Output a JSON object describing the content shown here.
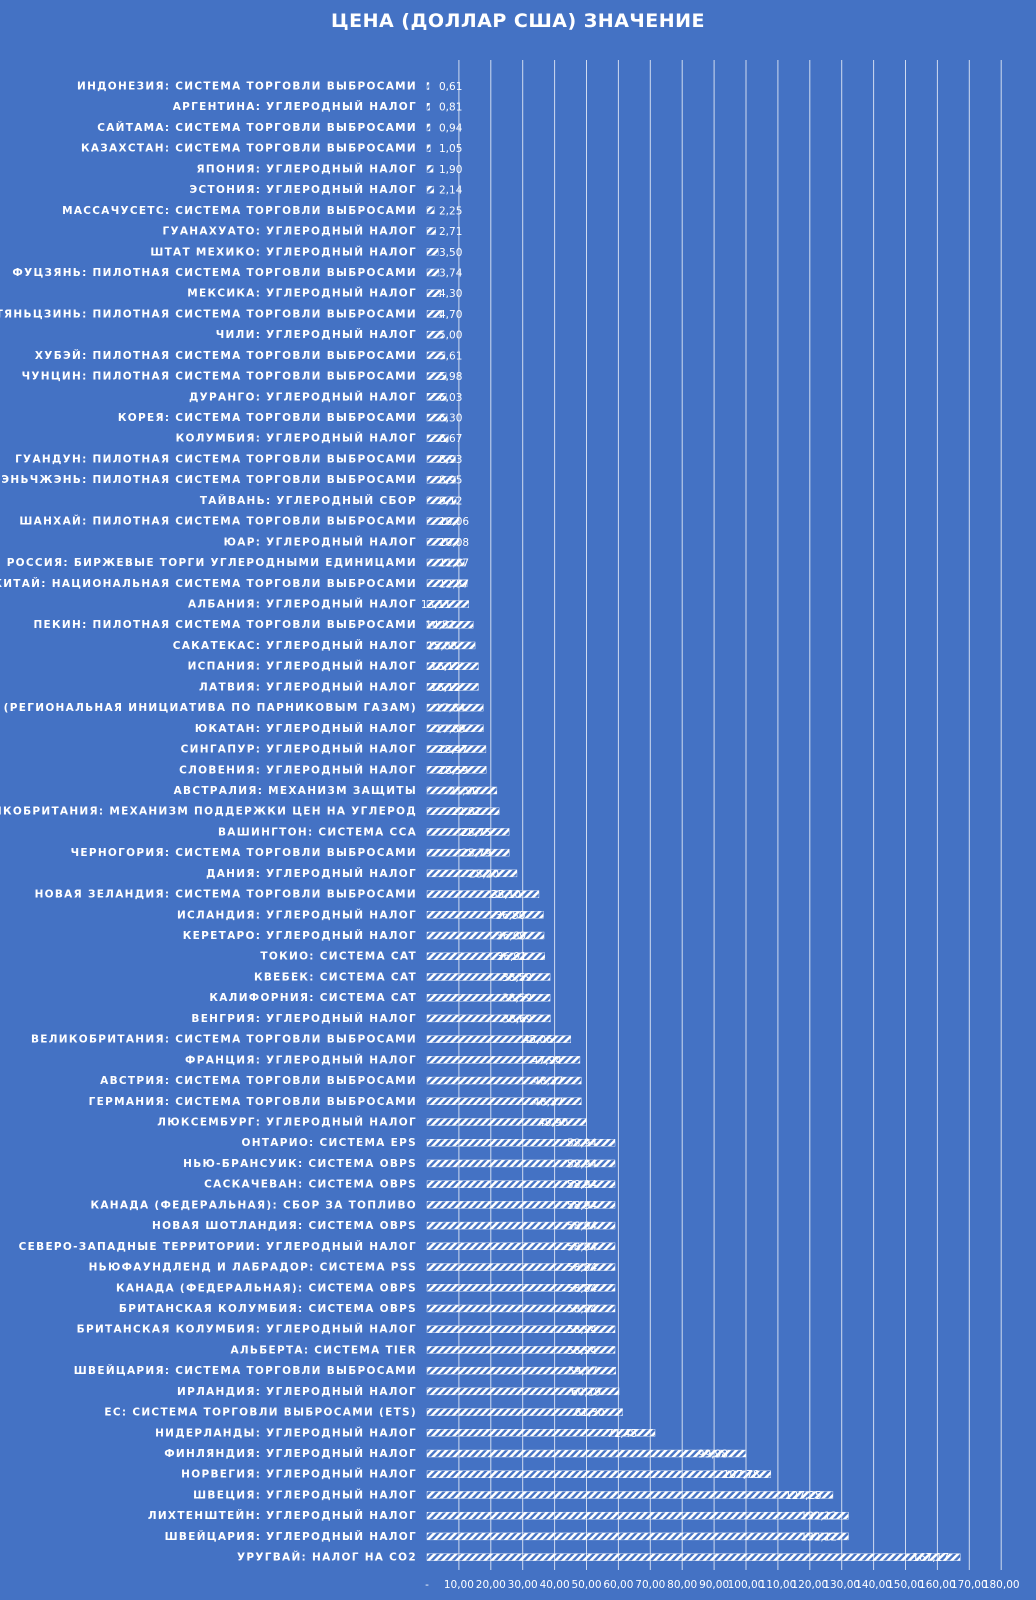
{
  "chart_data": {
    "type": "bar",
    "orientation": "horizontal",
    "title": "ЦЕНА (ДОЛЛАР США)  ЗНАЧЕНИЕ",
    "xlabel": "",
    "ylabel": "",
    "xlim": [
      0,
      180
    ],
    "grid": true,
    "legend": "none",
    "colors": {
      "background": "#4472c4",
      "bar": "#ffffff",
      "text": "#ffffff"
    },
    "x_ticks": [
      "-",
      "10,00",
      "20,00",
      "30,00",
      "40,00",
      "50,00",
      "60,00",
      "70,00",
      "80,00",
      "90,00",
      "100,00",
      "110,00",
      "120,00",
      "130,00",
      "140,00",
      "150,00",
      "160,00",
      "170,00",
      "180,00"
    ],
    "categories": [
      "ИНДОНЕЗИЯ: СИСТЕМА ТОРГОВЛИ ВЫБРОСАМИ",
      "АРГЕНТИНА: УГЛЕРОДНЫЙ НАЛОГ",
      "САЙТАМА: СИСТЕМА ТОРГОВЛИ ВЫБРОСАМИ",
      "КАЗАХСТАН: СИСТЕМА ТОРГОВЛИ ВЫБРОСАМИ",
      "ЯПОНИЯ: УГЛЕРОДНЫЙ НАЛОГ",
      "ЭСТОНИЯ: УГЛЕРОДНЫЙ НАЛОГ",
      "МАССАЧУСЕТС: СИСТЕМА ТОРГОВЛИ ВЫБРОСАМИ",
      "ГУАНАХУАТО: УГЛЕРОДНЫЙ НАЛОГ",
      "ШТАТ МЕХИКО: УГЛЕРОДНЫЙ НАЛОГ",
      "ФУЦЗЯНЬ: ПИЛОТНАЯ СИСТЕМА ТОРГОВЛИ ВЫБРОСАМИ",
      "МЕКСИКА: УГЛЕРОДНЫЙ НАЛОГ",
      "ТЯНЬЦЗИНЬ: ПИЛОТНАЯ СИСТЕМА ТОРГОВЛИ ВЫБРОСАМИ",
      "ЧИЛИ: УГЛЕРОДНЫЙ НАЛОГ",
      "ХУБЭЙ: ПИЛОТНАЯ СИСТЕМА ТОРГОВЛИ ВЫБРОСАМИ",
      "ЧУНЦИН: ПИЛОТНАЯ СИСТЕМА ТОРГОВЛИ ВЫБРОСАМИ",
      "ДУРАНГО: УГЛЕРОДНЫЙ НАЛОГ",
      "КОРЕЯ: СИСТЕМА ТОРГОВЛИ ВЫБРОСАМИ",
      "КОЛУМБИЯ: УГЛЕРОДНЫЙ НАЛОГ",
      "ГУАНДУН: ПИЛОТНАЯ СИСТЕМА ТОРГОВЛИ ВЫБРОСАМИ",
      "ШЭНЬЧЖЭНЬ: ПИЛОТНАЯ СИСТЕМА ТОРГОВЛИ ВЫБРОСАМИ",
      "ТАЙВАНЬ: УГЛЕРОДНЫЙ СБОР",
      "ШАНХАЙ: ПИЛОТНАЯ СИСТЕМА ТОРГОВЛИ ВЫБРОСАМИ",
      "ЮАР: УГЛЕРОДНЫЙ НАЛОГ",
      "РОССИЯ: БИРЖЕВЫЕ ТОРГИ УГЛЕРОДНЫМИ ЕДИНИЦАМИ",
      "КИТАЙ: НАЦИОНАЛЬНАЯ СИСТЕМА ТОРГОВЛИ ВЫБРОСАМИ",
      "АЛБАНИЯ: УГЛЕРОДНЫЙ НАЛОГ",
      "ПЕКИН: ПИЛОТНАЯ СИСТЕМА ТОРГОВЛИ ВЫБРОСАМИ",
      "САКАТЕКАС: УГЛЕРОДНЫЙ НАЛОГ",
      "ИСПАНИЯ: УГЛЕРОДНЫЙ НАЛОГ",
      "ЛАТВИЯ: УГЛЕРОДНЫЙ НАЛОГ",
      "RGGI (РЕГИОНАЛЬНАЯ ИНИЦИАТИВА ПО ПАРНИКОВЫМ ГАЗАМ)",
      "ЮКАТАН: УГЛЕРОДНЫЙ НАЛОГ",
      "СИНГАПУР: УГЛЕРОДНЫЙ НАЛОГ",
      "СЛОВЕНИЯ: УГЛЕРОДНЫЙ НАЛОГ",
      "АВСТРАЛИЯ: МЕХАНИЗМ ЗАЩИТЫ",
      "ВЕЛИКОБРИТАНИЯ: МЕХАНИЗМ ПОДДЕРЖКИ ЦЕН НА УГЛЕРОД",
      "ВАШИНГТОН: СИСТЕМА ССА",
      "ЧЕРНОГОРИЯ: СИСТЕМА ТОРГОВЛИ ВЫБРОСАМИ",
      "ДАНИЯ: УГЛЕРОДНЫЙ НАЛОГ",
      "НОВАЯ ЗЕЛАНДИЯ: СИСТЕМА ТОРГОВЛИ ВЫБРОСАМИ",
      "ИСЛАНДИЯ: УГЛЕРОДНЫЙ НАЛОГ",
      "КЕРЕТАРО: УГЛЕРОДНЫЙ НАЛОГ",
      "ТОКИО: СИСТЕМА CAT",
      "КВЕБЕК: СИСТЕМА CAT",
      "КАЛИФОРНИЯ: СИСТЕМА CAT",
      "ВЕНГРИЯ: УГЛЕРОДНЫЙ НАЛОГ",
      "ВЕЛИКОБРИТАНИЯ: СИСТЕМА ТОРГОВЛИ ВЫБРОСАМИ",
      "ФРАНЦИЯ: УГЛЕРОДНЫЙ НАЛОГ",
      "АВСТРИЯ: СИСТЕМА ТОРГОВЛИ ВЫБРОСАМИ",
      "ГЕРМАНИЯ: СИСТЕМА ТОРГОВЛИ ВЫБРОСАМИ",
      "ЛЮКСЕМБУРГ: УГЛЕРОДНЫЙ НАЛОГ",
      "ОНТАРИО: СИСТЕМА EPS",
      "НЬЮ-БРАНСУИК: СИСТЕМА OBPS",
      "САСКАЧЕВАН: СИСТЕМА OBPS",
      "КАНАДА (ФЕДЕРАЛЬНАЯ): СБОР ЗА ТОПЛИВО",
      "НОВАЯ ШОТЛАНДИЯ: СИСТЕМА OBPS",
      "СЕВЕРО-ЗАПАДНЫЕ ТЕРРИТОРИИ: УГЛЕРОДНЫЙ НАЛОГ",
      "НЬЮФАУНДЛЕНД И ЛАБРАДОР: СИСТЕМА PSS",
      "КАНАДА (ФЕДЕРАЛЬНАЯ): СИСТЕМА OBPS",
      "БРИТАНСКАЯ КОЛУМБИЯ: СИСТЕМА OBPS",
      "БРИТАНСКАЯ КОЛУМБИЯ: УГЛЕРОДНЫЙ НАЛОГ",
      "АЛЬБЕРТА: СИСТЕМА TIER",
      "ШВЕЙЦАРИЯ: СИСТЕМА ТОРГОВЛИ ВЫБРОСАМИ",
      "ИРЛАНДИЯ: УГЛЕРОДНЫЙ НАЛОГ",
      "ЕС: СИСТЕМА ТОРГОВЛИ ВЫБРОСАМИ (ETS)",
      "НИДЕРЛАНДЫ: УГЛЕРОДНЫЙ НАЛОГ",
      "ФИНЛЯНДИЯ: УГЛЕРОДНЫЙ НАЛОГ",
      "НОРВЕГИЯ: УГЛЕРОДНЫЙ НАЛОГ",
      "ШВЕЦИЯ: УГЛЕРОДНЫЙ НАЛОГ",
      "ЛИХТЕНШТЕЙН: УГЛЕРОДНЫЙ НАЛОГ",
      "ШВЕЙЦАРИЯ: УГЛЕРОДНЫЙ НАЛОГ",
      "УРУГВАЙ: НАЛОГ НА CO2"
    ],
    "values": [
      0.61,
      0.81,
      0.94,
      1.05,
      1.9,
      2.14,
      2.25,
      2.71,
      3.5,
      3.74,
      4.3,
      4.7,
      5.0,
      5.61,
      5.98,
      6.03,
      6.3,
      6.67,
      8.93,
      8.95,
      9.12,
      10.06,
      10.08,
      11.67,
      12.57,
      13.11,
      14.51,
      15.08,
      16.12,
      16.12,
      17.64,
      17.69,
      18.47,
      18.59,
      21.9,
      22.61,
      25.75,
      25.79,
      28.2,
      35.1,
      36.5,
      36.69,
      36.91,
      38.59,
      38.59,
      38.69,
      45.06,
      47.94,
      48.37,
      48.37,
      49.9,
      58.94,
      58.94,
      58.94,
      58.94,
      58.94,
      58.94,
      58.94,
      58.94,
      58.94,
      58.94,
      58.94,
      59.17,
      60.19,
      61.3,
      71.48,
      99.98,
      107.78,
      127.25,
      132.12,
      132.12,
      167.17
    ],
    "value_labels": [
      "0,61",
      "0,81",
      "0,94",
      "1,05",
      "1,90",
      "2,14",
      "2,25",
      "2,71",
      "3,50",
      "3,74",
      "4,30",
      "4,70",
      "5,00",
      "5,61",
      "5,98",
      "6,03",
      "6,30",
      "6,67",
      "8,93",
      "8,95",
      "9,12",
      "10,06",
      "10,08",
      "11,67",
      "12,57",
      "13,11",
      "14,51",
      "15,08",
      "16,12",
      "16,12",
      "17,64",
      "17,69",
      "18,47",
      "18,59",
      "21,90",
      "22,61",
      "25,75",
      "25,79",
      "28,20",
      "35,10",
      "36,50",
      "36,69",
      "36,91",
      "38,59",
      "38,59",
      "38,69",
      "45,06",
      "47,94",
      "48,37",
      "48,37",
      "49,90",
      "58,94",
      "58,94",
      "58,94",
      "58,94",
      "58,94",
      "58,94",
      "58,94",
      "58,94",
      "58,94",
      "58,94",
      "58,94",
      "59,17",
      "60,19",
      "61,30",
      "71,48",
      "99,98",
      "107,78",
      "127,25",
      "132,12",
      "132,12",
      "167,17"
    ]
  }
}
